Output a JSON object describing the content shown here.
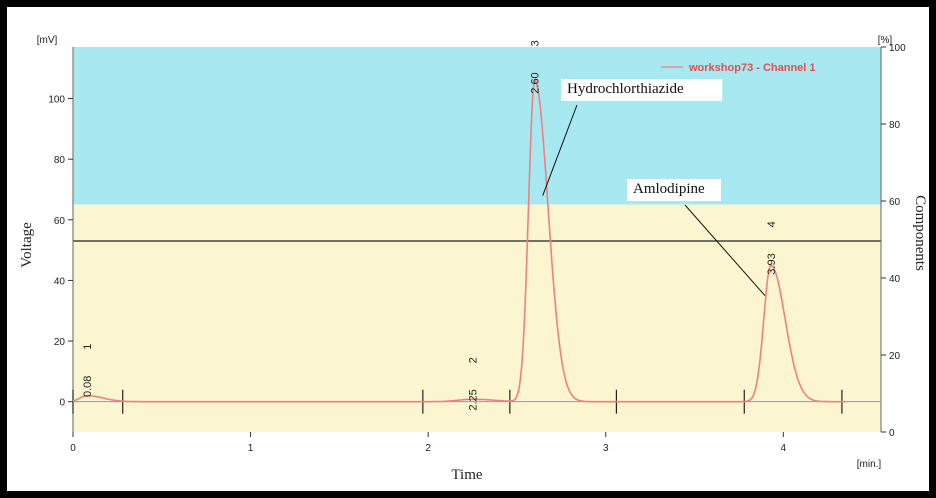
{
  "chart_data": {
    "type": "line",
    "xlabel": "Time",
    "x_unit": "[min.]",
    "ylabel": "Voltage",
    "y_unit": "[mV]",
    "y2label": "Components",
    "y2_unit": "[%]",
    "xlim": [
      0,
      4.55
    ],
    "ylim": [
      -10,
      117
    ],
    "y2lim": [
      0,
      100
    ],
    "x_ticks": [
      "0",
      "1",
      "2",
      "3",
      "4"
    ],
    "y_ticks": [
      "0",
      "20",
      "40",
      "60",
      "80",
      "100"
    ],
    "y2_ticks": [
      "0",
      "20",
      "40",
      "60",
      "80",
      "100"
    ],
    "grid": false,
    "legend": {
      "label": "workshop73 - Channel 1",
      "position": "top-right"
    },
    "colors": {
      "trace": "#f08080",
      "upper_band": "#a8e8f0",
      "lower_band": "#fbf6cf",
      "text_accent": "#e05050"
    },
    "reference_line_y": 53,
    "band_split_y": 65,
    "series": [
      {
        "peaks": [
          {
            "label": "0.08",
            "num": "1",
            "x": 0.08,
            "height": 2
          },
          {
            "label": "2.25",
            "num": "2",
            "x": 2.25,
            "height": 0.8
          },
          {
            "label": "2.60",
            "num": "3",
            "x": 2.6,
            "height": 106
          },
          {
            "label": "3.93",
            "num": "4",
            "x": 3.93,
            "height": 45
          }
        ]
      }
    ],
    "annotations": [
      {
        "text": "Hydrochlorthiazide",
        "peak": 2.6
      },
      {
        "text": "Amlodipine",
        "peak": 3.93
      }
    ],
    "integration_marks": [
      0.0,
      0.28,
      1.97,
      2.46,
      3.06,
      3.78,
      4.33
    ]
  }
}
